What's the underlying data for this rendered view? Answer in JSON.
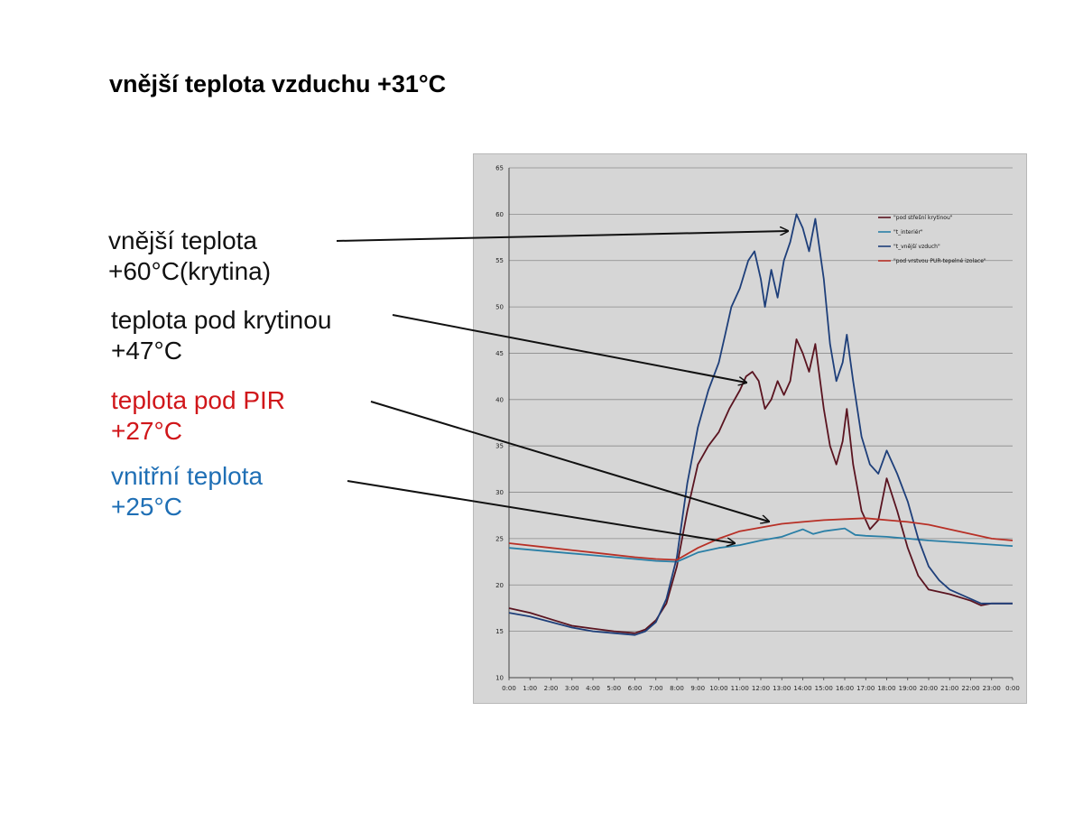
{
  "slide": {
    "title": "vnější teplota vzduchu +31°C"
  },
  "annotations": [
    {
      "lines": [
        "vnější teplota",
        "+60°C(krytina)"
      ],
      "color": "#111111"
    },
    {
      "lines": [
        "teplota pod krytinou",
        "+47°C"
      ],
      "color": "#111111"
    },
    {
      "lines": [
        "teplota pod PIR",
        "+27°C"
      ],
      "color": "#d0161a"
    },
    {
      "lines": [
        "vnitřní teplota",
        "+25°C"
      ],
      "color": "#1f6fb5"
    }
  ],
  "chart_data": {
    "type": "line",
    "x_ticks": [
      "0:00",
      "1:00",
      "2:00",
      "3:00",
      "4:00",
      "5:00",
      "6:00",
      "7:00",
      "8:00",
      "9:00",
      "10:00",
      "11:00",
      "12:00",
      "13:00",
      "14:00",
      "15:00",
      "16:00",
      "17:00",
      "18:00",
      "19:00",
      "20:00",
      "21:00",
      "22:00",
      "23:00",
      "0:00"
    ],
    "y_ticks": [
      "10",
      "15",
      "20",
      "25",
      "30",
      "35",
      "40",
      "45",
      "50",
      "55",
      "60",
      "65"
    ],
    "ylim": [
      10,
      65
    ],
    "xlim": [
      0,
      24
    ],
    "grid": true,
    "legend_position": "top-right",
    "series": [
      {
        "name": "\"pod střešní krytinou\"",
        "color": "#5a1420",
        "points": [
          [
            0,
            17.5
          ],
          [
            1,
            17
          ],
          [
            2,
            16.3
          ],
          [
            3,
            15.6
          ],
          [
            4,
            15.3
          ],
          [
            5,
            15
          ],
          [
            6,
            14.8
          ],
          [
            6.5,
            15.2
          ],
          [
            7,
            16.2
          ],
          [
            7.5,
            18
          ],
          [
            8,
            22
          ],
          [
            8.5,
            28
          ],
          [
            9,
            33
          ],
          [
            9.5,
            35
          ],
          [
            10,
            36.5
          ],
          [
            10.5,
            39
          ],
          [
            11,
            41
          ],
          [
            11.3,
            42.5
          ],
          [
            11.6,
            43
          ],
          [
            11.9,
            42
          ],
          [
            12.2,
            39
          ],
          [
            12.5,
            40
          ],
          [
            12.8,
            42
          ],
          [
            13.1,
            40.5
          ],
          [
            13.4,
            42
          ],
          [
            13.7,
            46.5
          ],
          [
            14,
            45
          ],
          [
            14.3,
            43
          ],
          [
            14.6,
            46
          ],
          [
            15,
            39
          ],
          [
            15.3,
            35
          ],
          [
            15.6,
            33
          ],
          [
            15.9,
            35.5
          ],
          [
            16.1,
            39
          ],
          [
            16.4,
            33
          ],
          [
            16.8,
            28
          ],
          [
            17.2,
            26
          ],
          [
            17.6,
            27
          ],
          [
            18,
            31.5
          ],
          [
            18.5,
            28
          ],
          [
            19,
            24
          ],
          [
            19.5,
            21
          ],
          [
            20,
            19.5
          ],
          [
            21,
            19
          ],
          [
            22,
            18.3
          ],
          [
            22.5,
            17.8
          ],
          [
            23,
            18
          ],
          [
            24,
            18
          ]
        ]
      },
      {
        "name": "\"t_interiér\"",
        "color": "#2a7fa6",
        "points": [
          [
            0,
            24
          ],
          [
            2,
            23.6
          ],
          [
            4,
            23.2
          ],
          [
            6,
            22.8
          ],
          [
            7,
            22.6
          ],
          [
            8,
            22.5
          ],
          [
            8.5,
            23
          ],
          [
            9,
            23.5
          ],
          [
            10,
            24
          ],
          [
            11,
            24.3
          ],
          [
            12,
            24.8
          ],
          [
            13,
            25.2
          ],
          [
            13.5,
            25.6
          ],
          [
            14,
            26
          ],
          [
            14.5,
            25.5
          ],
          [
            15,
            25.8
          ],
          [
            16,
            26.1
          ],
          [
            16.5,
            25.4
          ],
          [
            17,
            25.3
          ],
          [
            18,
            25.2
          ],
          [
            19,
            25
          ],
          [
            20,
            24.8
          ],
          [
            22,
            24.5
          ],
          [
            24,
            24.2
          ]
        ]
      },
      {
        "name": "\"t_vnější vzduch\"",
        "color": "#1e3f7a",
        "points": [
          [
            0,
            17
          ],
          [
            1,
            16.6
          ],
          [
            2,
            16
          ],
          [
            3,
            15.4
          ],
          [
            4,
            15
          ],
          [
            5,
            14.8
          ],
          [
            6,
            14.6
          ],
          [
            6.5,
            15
          ],
          [
            7,
            16
          ],
          [
            7.5,
            18.5
          ],
          [
            8,
            23
          ],
          [
            8.5,
            31
          ],
          [
            9,
            37
          ],
          [
            9.5,
            41
          ],
          [
            10,
            44
          ],
          [
            10.3,
            47
          ],
          [
            10.6,
            50
          ],
          [
            11,
            52
          ],
          [
            11.4,
            55
          ],
          [
            11.7,
            56
          ],
          [
            12,
            53
          ],
          [
            12.2,
            50
          ],
          [
            12.5,
            54
          ],
          [
            12.8,
            51
          ],
          [
            13.1,
            55
          ],
          [
            13.4,
            57
          ],
          [
            13.7,
            60
          ],
          [
            14,
            58.5
          ],
          [
            14.3,
            56
          ],
          [
            14.6,
            59.5
          ],
          [
            15,
            53
          ],
          [
            15.3,
            46
          ],
          [
            15.6,
            42
          ],
          [
            15.9,
            44
          ],
          [
            16.1,
            47
          ],
          [
            16.4,
            42
          ],
          [
            16.8,
            36
          ],
          [
            17.2,
            33
          ],
          [
            17.6,
            32
          ],
          [
            18,
            34.5
          ],
          [
            18.5,
            32
          ],
          [
            19,
            29
          ],
          [
            19.5,
            25
          ],
          [
            20,
            22
          ],
          [
            20.5,
            20.5
          ],
          [
            21,
            19.5
          ],
          [
            22,
            18.5
          ],
          [
            22.5,
            18
          ],
          [
            23,
            18
          ],
          [
            24,
            18
          ]
        ]
      },
      {
        "name": "\"pod vrstvou PUR-tepelné izolace\"",
        "color": "#b83026",
        "points": [
          [
            0,
            24.5
          ],
          [
            2,
            24
          ],
          [
            4,
            23.5
          ],
          [
            6,
            23
          ],
          [
            7,
            22.8
          ],
          [
            8,
            22.7
          ],
          [
            9,
            24
          ],
          [
            10,
            25
          ],
          [
            11,
            25.8
          ],
          [
            12,
            26.2
          ],
          [
            13,
            26.6
          ],
          [
            14,
            26.8
          ],
          [
            15,
            27
          ],
          [
            16,
            27.1
          ],
          [
            17,
            27.2
          ],
          [
            18,
            27
          ],
          [
            19,
            26.8
          ],
          [
            20,
            26.5
          ],
          [
            21,
            26
          ],
          [
            22,
            25.5
          ],
          [
            23,
            25
          ],
          [
            24,
            24.8
          ]
        ]
      }
    ]
  }
}
